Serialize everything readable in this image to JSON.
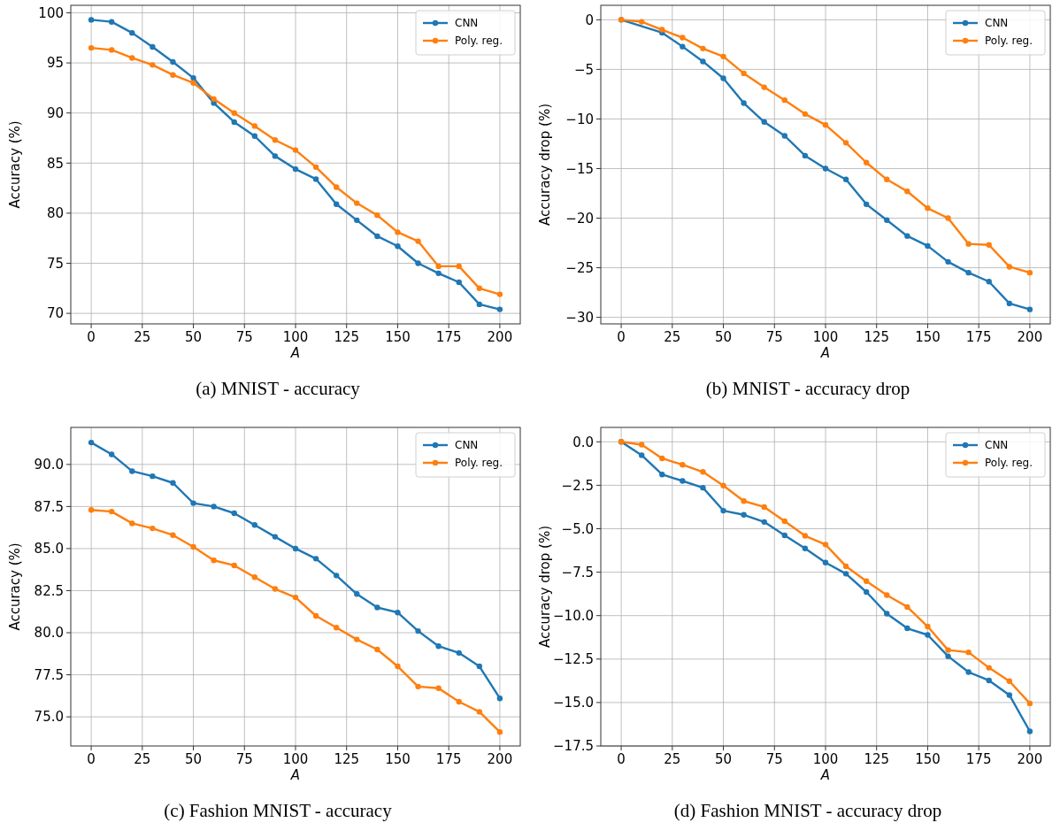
{
  "chart_data": [
    {
      "type": "line",
      "xlabel": "A",
      "ylabel": "Accuracy (%)",
      "annotations": [
        "(a) MNIST - accuracy"
      ],
      "x": [
        0,
        10,
        20,
        30,
        40,
        50,
        60,
        70,
        80,
        90,
        100,
        110,
        120,
        130,
        140,
        150,
        160,
        170,
        180,
        190,
        200
      ],
      "xlim": [
        -10,
        210
      ],
      "xticks": [
        0,
        25,
        50,
        75,
        100,
        125,
        150,
        175,
        200
      ],
      "ylim": [
        68.95,
        100.75
      ],
      "yticks": [
        70,
        75,
        80,
        85,
        90,
        95,
        100
      ],
      "grid": true,
      "legend": "top right",
      "marker": "circle",
      "series": [
        {
          "name": "CNN",
          "color": "#1f77b4",
          "values": [
            99.3,
            99.1,
            98.0,
            96.6,
            95.1,
            93.5,
            91.0,
            89.1,
            87.7,
            85.7,
            84.4,
            83.4,
            80.9,
            79.3,
            77.7,
            76.7,
            75.0,
            74.0,
            73.1,
            70.9,
            70.4
          ]
        },
        {
          "name": "Poly. reg.",
          "color": "#ff7f0e",
          "values": [
            96.5,
            96.3,
            95.5,
            94.8,
            93.8,
            93.0,
            91.4,
            90.0,
            88.7,
            87.3,
            86.3,
            84.6,
            82.6,
            81.0,
            79.8,
            78.1,
            77.2,
            74.7,
            74.7,
            72.5,
            71.9
          ]
        }
      ]
    },
    {
      "type": "line",
      "xlabel": "A",
      "ylabel": "Accuracy drop (%)",
      "annotations": [
        "(b) MNIST - accuracy drop"
      ],
      "x": [
        0,
        10,
        20,
        30,
        40,
        50,
        60,
        70,
        80,
        90,
        100,
        110,
        120,
        130,
        140,
        150,
        160,
        170,
        180,
        190,
        200
      ],
      "xlim": [
        -10,
        210
      ],
      "xticks": [
        0,
        25,
        50,
        75,
        100,
        125,
        150,
        175,
        200
      ],
      "ylim": [
        -30.66,
        1.46
      ],
      "yticks": [
        {
          "value": -30,
          "label": "−30"
        },
        {
          "value": -25,
          "label": "−25"
        },
        {
          "value": -20,
          "label": "−20"
        },
        {
          "value": -15,
          "label": "−15"
        },
        {
          "value": -10,
          "label": "−10"
        },
        {
          "value": -5,
          "label": "−5"
        },
        0
      ],
      "grid": true,
      "legend": "top right",
      "marker": "circle",
      "series": [
        {
          "name": "CNN",
          "color": "#1f77b4",
          "values": [
            0,
            null,
            -1.3,
            -2.7,
            -4.2,
            -5.9,
            -8.4,
            -10.3,
            -11.7,
            -13.7,
            -15.0,
            -16.1,
            -18.6,
            -20.2,
            -21.8,
            -22.8,
            -24.4,
            -25.5,
            -26.4,
            -28.6,
            -29.2
          ]
        },
        {
          "name": "Poly. reg.",
          "color": "#ff7f0e",
          "values": [
            0,
            -0.2,
            -1.0,
            -1.8,
            -2.9,
            -3.7,
            -5.4,
            -6.8,
            -8.1,
            -9.5,
            -10.6,
            -12.4,
            -14.4,
            -16.1,
            -17.3,
            -19.0,
            -20.0,
            -22.6,
            -22.7,
            -24.9,
            -25.5
          ]
        }
      ]
    },
    {
      "type": "line",
      "xlabel": "A",
      "ylabel": "Accuracy (%)",
      "annotations": [
        "(c) Fashion MNIST - accuracy"
      ],
      "x": [
        0,
        10,
        20,
        30,
        40,
        50,
        60,
        70,
        80,
        90,
        100,
        110,
        120,
        130,
        140,
        150,
        160,
        170,
        180,
        190,
        200
      ],
      "xlim": [
        -10,
        210
      ],
      "xticks": [
        0,
        25,
        50,
        75,
        100,
        125,
        150,
        175,
        200
      ],
      "ylim": [
        73.27,
        92.2
      ],
      "yticks": [
        {
          "value": 75,
          "label": "75.0"
        },
        {
          "value": 77.5,
          "label": "77.5"
        },
        {
          "value": 80,
          "label": "80.0"
        },
        {
          "value": 82.5,
          "label": "82.5"
        },
        {
          "value": 85,
          "label": "85.0"
        },
        {
          "value": 87.5,
          "label": "87.5"
        },
        {
          "value": 90,
          "label": "90.0"
        }
      ],
      "grid": true,
      "legend": "top right",
      "marker": "circle",
      "series": [
        {
          "name": "CNN",
          "color": "#1f77b4",
          "values": [
            91.3,
            90.6,
            89.6,
            89.3,
            88.9,
            87.7,
            87.5,
            87.1,
            86.4,
            85.7,
            85.0,
            84.4,
            83.4,
            82.3,
            81.5,
            81.2,
            80.1,
            79.2,
            78.8,
            78.0,
            76.1
          ]
        },
        {
          "name": "Poly. reg.",
          "color": "#ff7f0e",
          "values": [
            87.3,
            87.2,
            86.5,
            86.2,
            85.8,
            85.1,
            84.3,
            84.0,
            83.3,
            82.6,
            82.1,
            81.0,
            80.3,
            79.6,
            79.0,
            78.0,
            76.8,
            76.7,
            75.9,
            75.3,
            74.1
          ]
        }
      ]
    },
    {
      "type": "line",
      "xlabel": "A",
      "ylabel": "Accuracy drop (%)",
      "annotations": [
        "(d) Fashion MNIST - accuracy drop"
      ],
      "x": [
        0,
        10,
        20,
        30,
        40,
        50,
        60,
        70,
        80,
        90,
        100,
        110,
        120,
        130,
        140,
        150,
        160,
        170,
        180,
        190,
        200
      ],
      "xlim": [
        -10,
        210
      ],
      "xticks": [
        0,
        25,
        50,
        75,
        100,
        125,
        150,
        175,
        200
      ],
      "ylim": [
        -17.5,
        0.83
      ],
      "yticks": [
        {
          "value": -17.5,
          "label": "−17.5"
        },
        {
          "value": -15,
          "label": "−15.0"
        },
        {
          "value": -12.5,
          "label": "−12.5"
        },
        {
          "value": -10,
          "label": "−10.0"
        },
        {
          "value": -7.5,
          "label": "−7.5"
        },
        {
          "value": -5,
          "label": "−5.0"
        },
        {
          "value": -2.5,
          "label": "−2.5"
        },
        {
          "value": 0,
          "label": "0.0"
        }
      ],
      "grid": true,
      "legend": "top right",
      "marker": "circle",
      "series": [
        {
          "name": "CNN",
          "color": "#1f77b4",
          "values": [
            0,
            -0.77,
            -1.88,
            -2.25,
            -2.64,
            -3.96,
            -4.2,
            -4.61,
            -5.38,
            -6.13,
            -6.95,
            -7.59,
            -8.64,
            -9.89,
            -10.73,
            -11.11,
            -12.34,
            -13.25,
            -13.73,
            -14.57,
            -16.66
          ]
        },
        {
          "name": "Poly. reg.",
          "color": "#ff7f0e",
          "values": [
            0,
            -0.16,
            -0.95,
            -1.32,
            -1.73,
            -2.52,
            -3.41,
            -3.75,
            -4.57,
            -5.41,
            -5.91,
            -7.16,
            -8.02,
            -8.82,
            -9.5,
            -10.63,
            -11.98,
            -12.11,
            -13.0,
            -13.77,
            -15.05
          ]
        }
      ]
    }
  ]
}
